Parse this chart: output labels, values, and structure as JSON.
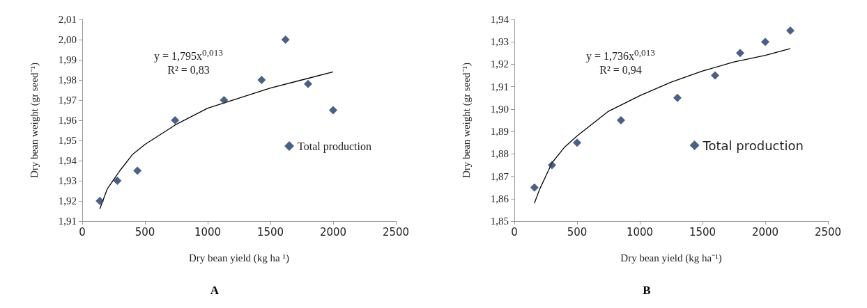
{
  "chart_data": [
    {
      "type": "scatter",
      "title": "A",
      "xlabel": "Dry bean yield (kg ha ¹)",
      "ylabel": "Dry bean weight (gr seed⁻¹)",
      "annotations": [
        "y = 1,795x$^{0,013}$",
        "R² = 0,83"
      ],
      "legend": "bottom right",
      "marker": "diamond",
      "grid": false,
      "xlim": [
        0,
        2500
      ],
      "xticks": [
        0,
        500,
        1000,
        1500,
        2000,
        2500
      ],
      "ylim": [
        1.91,
        2.01
      ],
      "yticks": [
        {
          "value": 1.91,
          "label": "1,91"
        },
        {
          "value": 1.92,
          "label": "1,92"
        },
        {
          "value": 1.93,
          "label": "1,93"
        },
        {
          "value": 1.94,
          "label": "1,94"
        },
        {
          "value": 1.95,
          "label": "1,95"
        },
        {
          "value": 1.96,
          "label": "1,96"
        },
        {
          "value": 1.97,
          "label": "1,97"
        },
        {
          "value": 1.98,
          "label": "1,98"
        },
        {
          "value": 1.99,
          "label": "1,99"
        },
        {
          "value": 2.0,
          "label": "2,00"
        },
        {
          "value": 2.01,
          "label": "2,01"
        }
      ],
      "series": [
        {
          "name": "Total production",
          "color": "#1f3864",
          "x": [
            140,
            280,
            440,
            740,
            1130,
            1430,
            1620,
            1800,
            2000
          ],
          "values": [
            1.92,
            1.93,
            1.935,
            1.96,
            1.97,
            1.98,
            2.0,
            1.978,
            1.965
          ]
        },
        {
          "type": "line",
          "color": "#000000",
          "marker": "none",
          "x": [
            140,
            200,
            300,
            400,
            500,
            750,
            1000,
            1250,
            1500,
            1750,
            2000
          ],
          "values": [
            1.916,
            1.926,
            1.935,
            1.943,
            1.948,
            1.958,
            1.966,
            1.971,
            1.976,
            1.98,
            1.984
          ]
        }
      ]
    },
    {
      "type": "scatter",
      "title": "B",
      "xlabel": "Dry bean yield (kg ha⁻¹)",
      "ylabel": "Dry bean weight (gr seed⁻¹)",
      "annotations": [
        "y = 1,736x$^{0,013}$",
        "R² = 0,94"
      ],
      "legend": "bottom right",
      "marker": "diamond",
      "grid": false,
      "xlim": [
        0,
        2500
      ],
      "xticks": [
        0,
        500,
        1000,
        1500,
        2000,
        2500
      ],
      "ylim": [
        1.85,
        1.94
      ],
      "yticks": [
        {
          "value": 1.85,
          "label": "1,85"
        },
        {
          "value": 1.86,
          "label": "1,86"
        },
        {
          "value": 1.87,
          "label": "1,87"
        },
        {
          "value": 1.88,
          "label": "1,88"
        },
        {
          "value": 1.89,
          "label": "1,89"
        },
        {
          "value": 1.9,
          "label": "1,90"
        },
        {
          "value": 1.91,
          "label": "1,91"
        },
        {
          "value": 1.92,
          "label": "1,92"
        },
        {
          "value": 1.93,
          "label": "1,93"
        },
        {
          "value": 1.94,
          "label": "1,94"
        }
      ],
      "series": [
        {
          "name": "Total production",
          "color": "#1f3864",
          "x": [
            160,
            300,
            500,
            850,
            1300,
            1600,
            1800,
            2000,
            2200
          ],
          "values": [
            1.865,
            1.875,
            1.885,
            1.895,
            1.905,
            1.915,
            1.925,
            1.93,
            1.935
          ]
        },
        {
          "type": "line",
          "color": "#000000",
          "marker": "none",
          "x": [
            160,
            200,
            300,
            400,
            500,
            750,
            1000,
            1250,
            1500,
            1750,
            2000,
            2200
          ],
          "values": [
            1.858,
            1.864,
            1.876,
            1.883,
            1.888,
            1.899,
            1.906,
            1.912,
            1.917,
            1.921,
            1.924,
            1.927
          ]
        }
      ]
    }
  ]
}
